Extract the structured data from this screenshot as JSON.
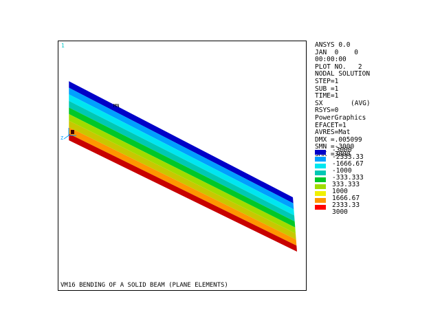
{
  "window": {
    "number": "1",
    "title": "VM16 BENDING OF A SOLID BEAM (PLANE ELEMENTS)",
    "min_label": "MN",
    "triad_label": "Z",
    "triad_color": "#00a0ff",
    "number_color": "#00c8c8"
  },
  "info": {
    "program": "ANSYS 0.0",
    "date": "JAN  0    0",
    "time": "00:00:00",
    "plot_no": "PLOT NO.   2",
    "solution": "NODAL SOLUTION",
    "step": "STEP=1",
    "sub": "SUB =1",
    "time_val": "TIME=1",
    "item_key": "SX",
    "item_avg": "(AVG)",
    "rsys": "RSYS=0",
    "graphics": "PowerGraphics",
    "efacet": "EFACET=1",
    "avres": "AVRES=Mat",
    "dmx": "DMX =.005099",
    "smn": "SMN =-3000",
    "smx": "SMX =3000"
  },
  "legend": [
    {
      "label": "-3000",
      "color": "#0000c8"
    },
    {
      "label": "-2333.33",
      "color": "#00a0ff"
    },
    {
      "label": "-1666.67",
      "color": "#00e6f0"
    },
    {
      "label": "-1000",
      "color": "#00c8b4"
    },
    {
      "label": "-333.333",
      "color": "#00c828"
    },
    {
      "label": "333.333",
      "color": "#a0dc00"
    },
    {
      "label": "1000",
      "color": "#f0f000"
    },
    {
      "label": "1666.67",
      "color": "#ff9600"
    },
    {
      "label": "2333.33",
      "color": "#ff0000"
    },
    {
      "label": "3000",
      "color": ""
    }
  ],
  "beam_bands": [
    "#0000c8",
    "#00a0ff",
    "#00e6f0",
    "#00c8b4",
    "#00c828",
    "#a0dc00",
    "#c8c800",
    "#ff9600",
    "#c80000"
  ]
}
